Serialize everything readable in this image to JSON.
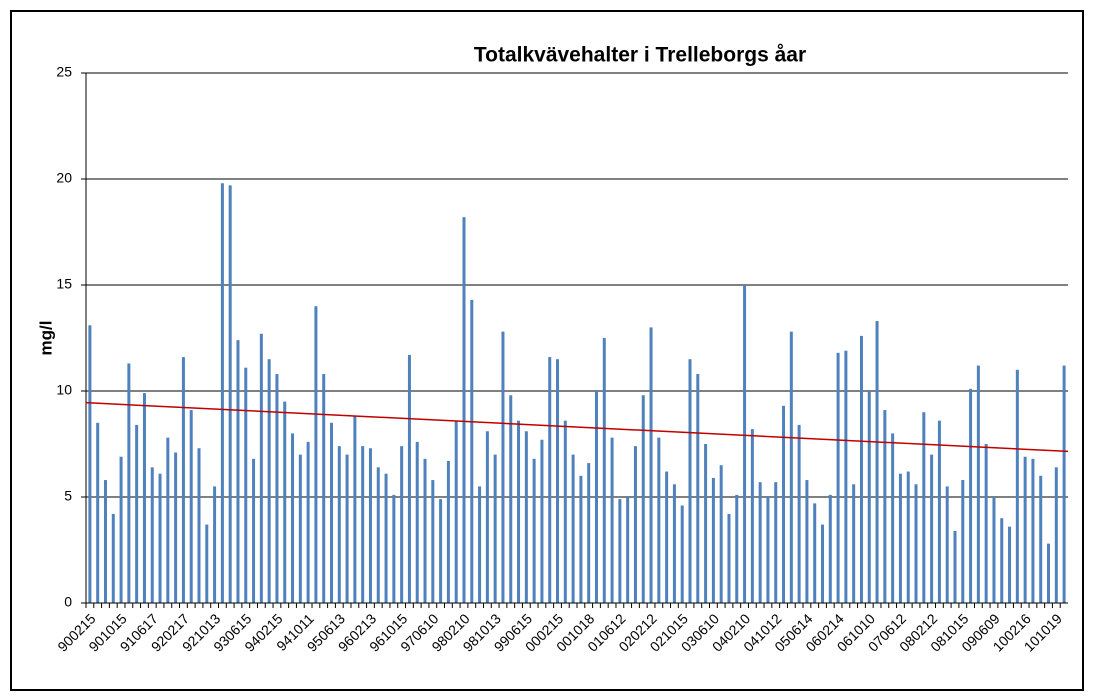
{
  "chart_data": {
    "type": "bar",
    "title": "Totalkvävehalter i Trelleborgs åar",
    "y_label": "mg/l",
    "categories": [
      "900215",
      null,
      null,
      null,
      "901015",
      null,
      null,
      null,
      "910617",
      null,
      null,
      null,
      "920217",
      null,
      null,
      null,
      "921013",
      null,
      null,
      null,
      "930615",
      null,
      null,
      null,
      "940215",
      null,
      null,
      null,
      "941011",
      null,
      null,
      null,
      "950613",
      null,
      null,
      null,
      "960213",
      null,
      null,
      null,
      "961015",
      null,
      null,
      null,
      "970610",
      null,
      null,
      null,
      "980210",
      null,
      null,
      null,
      "981013",
      null,
      null,
      null,
      "990615",
      null,
      null,
      null,
      "000215",
      null,
      null,
      null,
      "001018",
      null,
      null,
      null,
      "010612",
      null,
      null,
      null,
      "020212",
      null,
      null,
      null,
      "021015",
      null,
      null,
      null,
      "030610",
      null,
      null,
      null,
      "040210",
      null,
      null,
      null,
      "041012",
      null,
      null,
      null,
      "050614",
      null,
      null,
      null,
      "060214",
      null,
      null,
      null,
      "061010",
      null,
      null,
      null,
      "070612",
      null,
      null,
      null,
      "080212",
      null,
      null,
      null,
      "081015",
      null,
      null,
      null,
      "090609",
      null,
      null,
      null,
      "100216",
      null,
      null,
      null,
      "101019",
      null
    ],
    "values": [
      13.1,
      8.5,
      5.8,
      4.2,
      6.9,
      11.3,
      8.4,
      9.9,
      6.4,
      6.1,
      7.8,
      7.1,
      11.6,
      9.1,
      7.3,
      3.7,
      5.5,
      19.8,
      19.7,
      12.4,
      11.1,
      6.8,
      12.7,
      11.5,
      10.8,
      9.5,
      8.0,
      7.0,
      7.6,
      14.0,
      10.8,
      8.5,
      7.4,
      7.0,
      8.8,
      7.4,
      7.3,
      6.4,
      6.1,
      5.1,
      7.4,
      11.7,
      7.6,
      6.8,
      5.8,
      4.9,
      6.7,
      8.6,
      18.2,
      14.3,
      5.5,
      8.1,
      7.0,
      12.8,
      9.8,
      8.6,
      8.1,
      6.8,
      7.7,
      11.6,
      11.5,
      8.6,
      7.0,
      6.0,
      6.6,
      10.0,
      12.5,
      7.8,
      4.9,
      5.0,
      7.4,
      9.8,
      13.0,
      7.8,
      6.2,
      5.6,
      4.6,
      11.5,
      10.8,
      7.5,
      5.9,
      6.5,
      4.2,
      5.1,
      15.0,
      8.2,
      5.7,
      5.0,
      5.7,
      9.3,
      12.8,
      8.4,
      5.8,
      4.7,
      3.7,
      5.1,
      11.8,
      11.9,
      5.6,
      12.6,
      10.0,
      13.3,
      9.1,
      8.0,
      6.1,
      6.2,
      5.6,
      9.0,
      7.0,
      8.6,
      5.5,
      3.4,
      5.8,
      10.1,
      11.2,
      7.5,
      5.0,
      4.0,
      3.6,
      11.0,
      6.9,
      6.8,
      6.0,
      2.8,
      6.4,
      11.2
    ],
    "color": "#4f81bd",
    "trend_line": {
      "start": 9.45,
      "end": 7.15,
      "color": "#c00000"
    },
    "ylim": [
      0,
      25
    ],
    "yticks": [
      0,
      5,
      10,
      15,
      20,
      25
    ],
    "grid": true
  }
}
